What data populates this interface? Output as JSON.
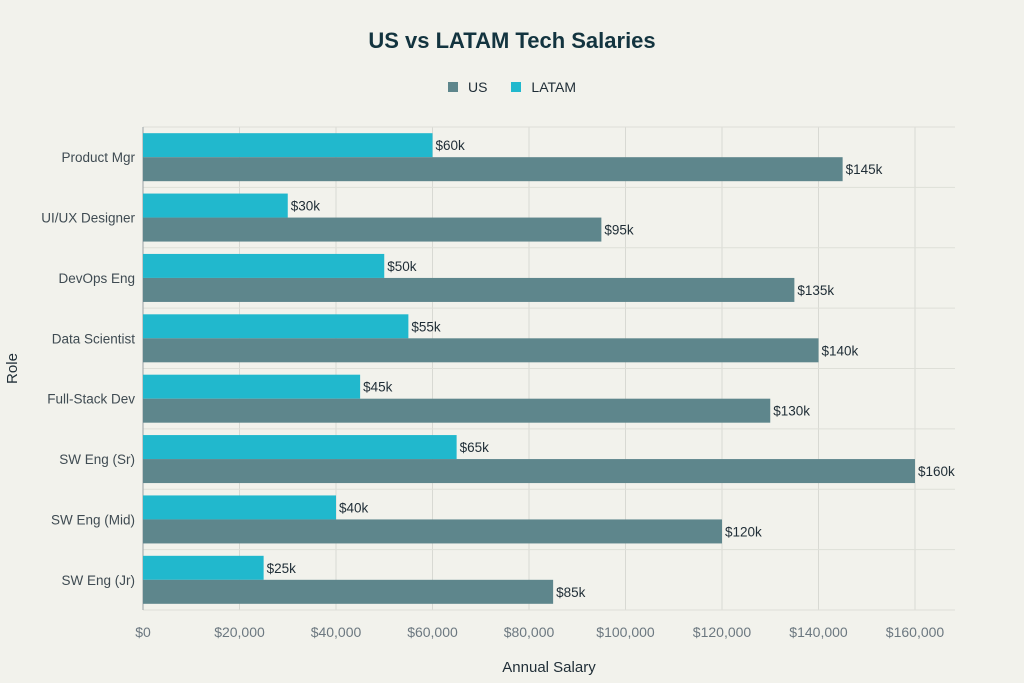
{
  "chart_data": {
    "type": "bar",
    "orientation": "horizontal",
    "title": "US vs LATAM Tech Salaries",
    "xlabel": "Annual Salary",
    "ylabel": "Role",
    "xlim": [
      0,
      170000
    ],
    "x_ticks": [
      0,
      20000,
      40000,
      60000,
      80000,
      100000,
      120000,
      140000,
      160000
    ],
    "x_tick_labels": [
      "$0",
      "$20,000",
      "$40,000",
      "$60,000",
      "$80,000",
      "$100,000",
      "$120,000",
      "$140,000",
      "$160,000"
    ],
    "grid": true,
    "legend_position": "top-center",
    "categories": [
      "Product Mgr",
      "UI/UX Designer",
      "DevOps Eng",
      "Data Scientist",
      "Full-Stack Dev",
      "SW Eng (Sr)",
      "SW Eng (Mid)",
      "SW Eng (Jr)"
    ],
    "series": [
      {
        "name": "US",
        "color": "#5e868c",
        "values": [
          145000,
          95000,
          135000,
          140000,
          130000,
          160000,
          120000,
          85000
        ],
        "data_labels": [
          "$145k",
          "$95k",
          "$135k",
          "$140k",
          "$130k",
          "$160k",
          "$120k",
          "$85k"
        ]
      },
      {
        "name": "LATAM",
        "color": "#21b8cd",
        "values": [
          60000,
          30000,
          50000,
          55000,
          45000,
          65000,
          40000,
          25000
        ],
        "data_labels": [
          "$60k",
          "$30k",
          "$50k",
          "$55k",
          "$45k",
          "$65k",
          "$40k",
          "$25k"
        ]
      }
    ]
  }
}
